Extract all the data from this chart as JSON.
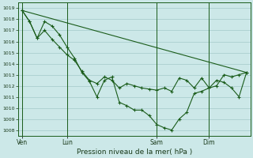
{
  "background_color": "#cce8e8",
  "grid_color": "#aacece",
  "line_color": "#1a5c1a",
  "xlabel": "Pression niveau de la mer( hPa )",
  "ylim": [
    1007.5,
    1019.5
  ],
  "yticks": [
    1008,
    1009,
    1010,
    1011,
    1012,
    1013,
    1014,
    1015,
    1016,
    1017,
    1018,
    1019
  ],
  "xtick_labels": [
    "Ven",
    "Lun",
    "Sam",
    "Dim"
  ],
  "xtick_positions": [
    0,
    6,
    18,
    25
  ],
  "vline_positions": [
    0,
    6,
    18,
    25
  ],
  "series1_x": [
    0,
    1,
    2,
    3,
    4,
    5,
    6,
    7,
    8,
    9,
    10,
    11,
    12,
    13,
    14,
    15,
    16,
    17,
    18,
    19,
    20,
    21,
    22,
    23,
    24,
    25,
    26,
    27,
    28,
    29,
    30
  ],
  "series1_y": [
    1018.8,
    1017.8,
    1016.3,
    1017.0,
    1016.2,
    1015.5,
    1014.8,
    1014.3,
    1013.3,
    1012.5,
    1012.2,
    1012.8,
    1012.5,
    1011.8,
    1012.2,
    1012.0,
    1011.8,
    1011.7,
    1011.6,
    1011.8,
    1011.5,
    1012.7,
    1012.5,
    1011.8,
    1012.7,
    1011.8,
    1012.0,
    1013.0,
    1012.8,
    1013.0,
    1013.2
  ],
  "series2_x": [
    0,
    1,
    2,
    3,
    4,
    5,
    6,
    7,
    8,
    9,
    10,
    11,
    12,
    13,
    14,
    15,
    16,
    17,
    18,
    19,
    20,
    21,
    22,
    23,
    24,
    25,
    26,
    27,
    28,
    29,
    30
  ],
  "series2_y": [
    1018.8,
    1017.8,
    1016.3,
    1017.8,
    1017.4,
    1016.6,
    1015.5,
    1014.5,
    1013.2,
    1012.4,
    1011.0,
    1012.5,
    1012.8,
    1010.5,
    1010.2,
    1009.8,
    1009.8,
    1009.3,
    1008.5,
    1008.2,
    1008.0,
    1009.0,
    1009.6,
    1011.3,
    1011.5,
    1011.8,
    1012.5,
    1012.3,
    1011.8,
    1011.0,
    1013.2
  ],
  "trend_x": [
    0,
    30
  ],
  "trend_y": [
    1018.8,
    1013.2
  ],
  "n_points": 31,
  "xlim": [
    -0.5,
    30.5
  ]
}
